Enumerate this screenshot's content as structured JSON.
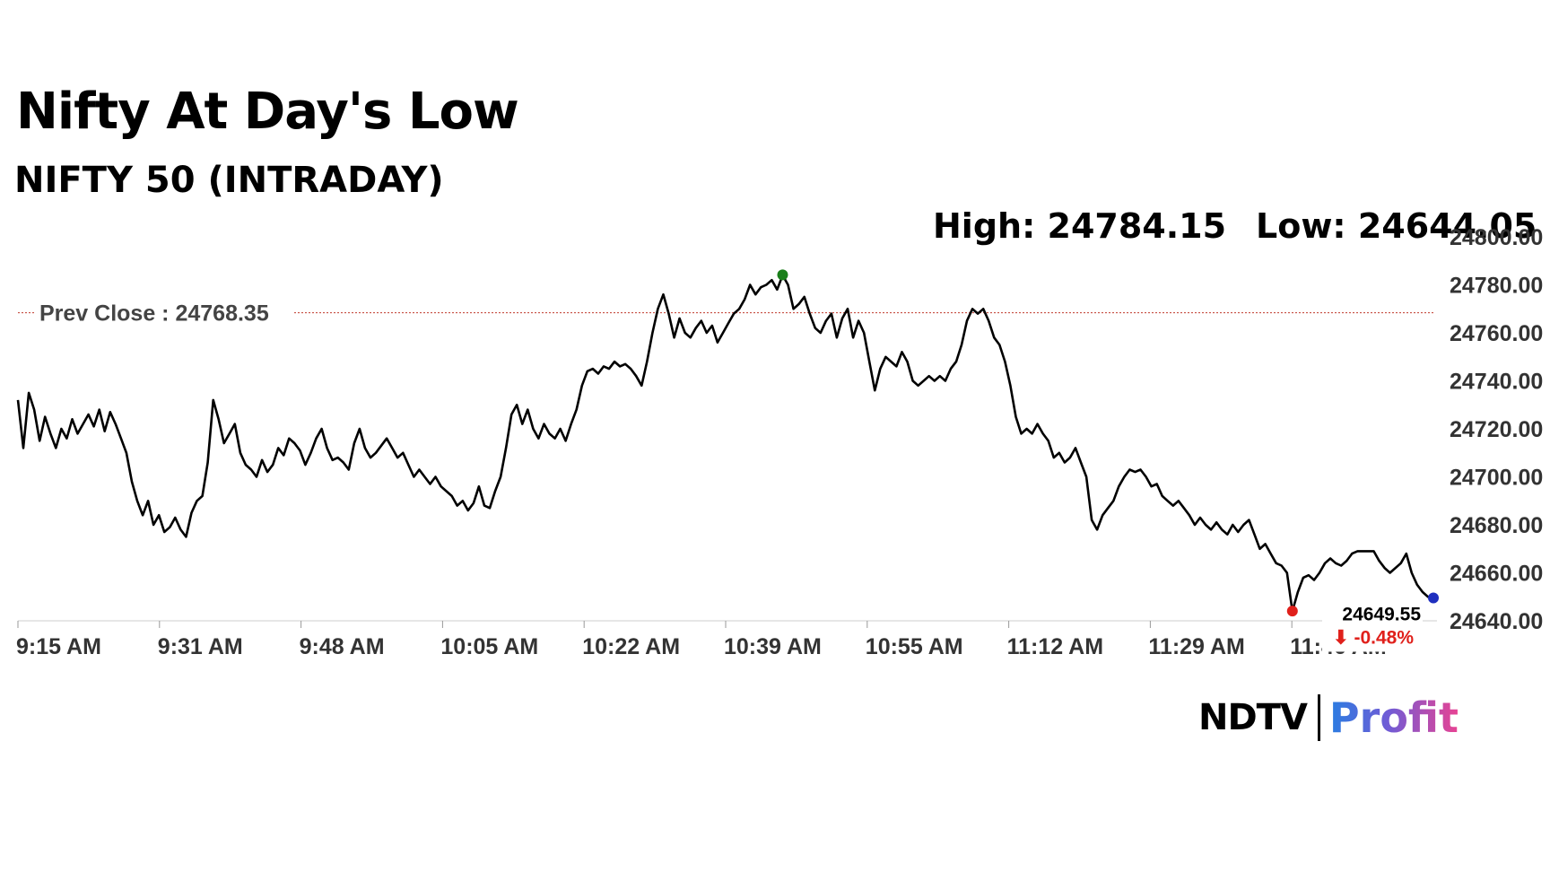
{
  "header": {
    "title": "Nifty At Day's Low",
    "subtitle": "NIFTY 50 (INTRADAY)",
    "high_text": "High: 24784.15",
    "low_text": "Low: 24644.05"
  },
  "logo": {
    "left": "NDTV",
    "right": "Profit"
  },
  "colors": {
    "line": "#000000",
    "prev_close": "#c0392b",
    "high_dot": "#1a7f1a",
    "low_dot": "#e0201b",
    "last_dot": "#1f2fbf",
    "change_down": "#e0201b"
  },
  "chart_data": {
    "type": "line",
    "title": "NIFTY 50 (INTRADAY)",
    "ylim": [
      24640,
      24800
    ],
    "y_ticks": [
      "24640.00",
      "24660.00",
      "24680.00",
      "24700.00",
      "24720.00",
      "24740.00",
      "24760.00",
      "24780.00",
      "24800.00"
    ],
    "x_ticks": [
      "9:15 AM",
      "9:31 AM",
      "9:48 AM",
      "10:05 AM",
      "10:22 AM",
      "10:39 AM",
      "10:55 AM",
      "11:12 AM",
      "11:29 AM",
      "11:46 AM"
    ],
    "prev_close": {
      "label": "Prev Close : 24768.35",
      "value": 24768.35
    },
    "high": 24784.15,
    "low": 24644.05,
    "last": {
      "value_label": "24649.55",
      "change_label": "⬇ -0.48%",
      "value": 24649.55
    },
    "grid": false,
    "series": [
      {
        "values": [
          24732,
          24712,
          24735,
          24728,
          24715,
          24725,
          24718,
          24712,
          24720,
          24716,
          24724,
          24718,
          24722,
          24726,
          24721,
          24728,
          24719,
          24727,
          24722,
          24716,
          24710,
          24698,
          24690,
          24684,
          24690,
          24680,
          24684,
          24677,
          24679,
          24683,
          24678,
          24675,
          24685,
          24690,
          24692,
          24706,
          24732,
          24724,
          24714,
          24718,
          24722,
          24710,
          24705,
          24703,
          24700,
          24707,
          24702,
          24705,
          24712,
          24709,
          24716,
          24714,
          24711,
          24705,
          24710,
          24716,
          24720,
          24712,
          24707,
          24708,
          24706,
          24703,
          24714,
          24720,
          24712,
          24708,
          24710,
          24713,
          24716,
          24712,
          24708,
          24710,
          24705,
          24700,
          24703,
          24700,
          24697,
          24700,
          24696,
          24694,
          24692,
          24688,
          24690,
          24686,
          24689,
          24696,
          24688,
          24687,
          24694,
          24700,
          24712,
          24726,
          24730,
          24722,
          24728,
          24720,
          24716,
          24722,
          24718,
          24716,
          24720,
          24715,
          24722,
          24728,
          24738,
          24744,
          24745,
          24743,
          24746,
          24745,
          24748,
          24746,
          24747,
          24745,
          24742,
          24738,
          24748,
          24760,
          24770,
          24776,
          24768,
          24758,
          24766,
          24760,
          24758,
          24762,
          24765,
          24760,
          24763,
          24756,
          24760,
          24764,
          24768,
          24770,
          24774,
          24780,
          24776,
          24779,
          24780,
          24782,
          24778,
          24784,
          24780,
          24770,
          24772,
          24775,
          24768,
          24762,
          24760,
          24765,
          24768,
          24758,
          24766,
          24770,
          24758,
          24765,
          24760,
          24748,
          24736,
          24745,
          24750,
          24748,
          24746,
          24752,
          24748,
          24740,
          24738,
          24740,
          24742,
          24740,
          24742,
          24740,
          24745,
          24748,
          24755,
          24765,
          24770,
          24768,
          24770,
          24765,
          24758,
          24755,
          24748,
          24738,
          24725,
          24718,
          24720,
          24718,
          24722,
          24718,
          24715,
          24708,
          24710,
          24706,
          24708,
          24712,
          24706,
          24700,
          24682,
          24678,
          24684,
          24687,
          24690,
          24696,
          24700,
          24703,
          24702,
          24703,
          24700,
          24696,
          24697,
          24692,
          24690,
          24688,
          24690,
          24687,
          24684,
          24680,
          24683,
          24680,
          24678,
          24681,
          24678,
          24676,
          24680,
          24677,
          24680,
          24682,
          24676,
          24670,
          24672,
          24668,
          24664,
          24663,
          24660,
          24644,
          24652,
          24658,
          24659,
          24657,
          24660,
          24664,
          24666,
          24664,
          24663,
          24665,
          24668,
          24669,
          24669,
          24669,
          24669,
          24665,
          24662,
          24660,
          24662,
          24664,
          24668,
          24660,
          24655,
          24652,
          24650,
          24649.55
        ]
      }
    ]
  }
}
